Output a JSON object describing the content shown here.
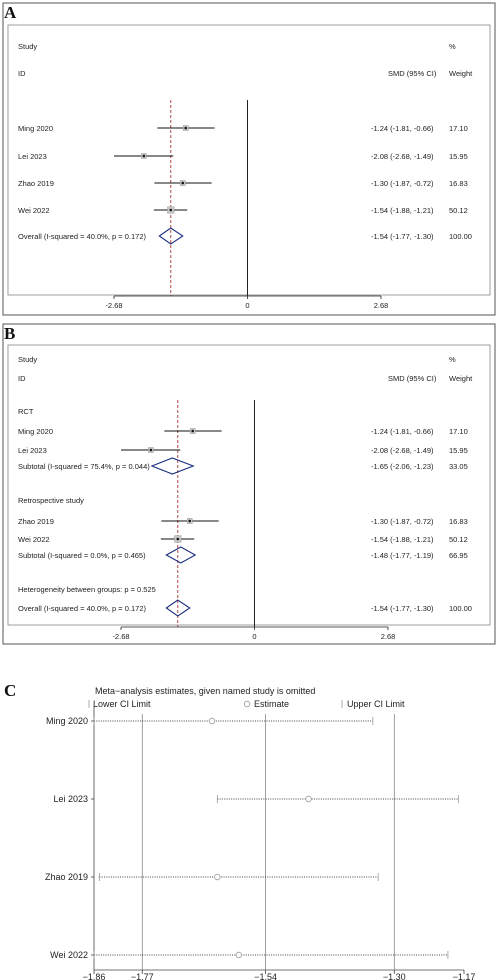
{
  "panels": {
    "a": {
      "label": "A"
    },
    "b": {
      "label": "B"
    },
    "c": {
      "label": "C"
    }
  },
  "chart_data": [
    {
      "type": "forest",
      "panel": "A",
      "header": {
        "study": "Study",
        "id": "ID",
        "effect": "SMD (95% CI)",
        "pct": "%",
        "weight": "Weight"
      },
      "xlim": [
        -2.68,
        2.68
      ],
      "ticks": [
        "-2.68",
        "0",
        "2.68"
      ],
      "reference_line": -1.54,
      "studies": [
        {
          "name": "Ming 2020",
          "est": -1.24,
          "lo": -1.81,
          "hi": -0.66,
          "ci_text": "-1.24 (-1.81, -0.66)",
          "weight": "17.10",
          "w": 17.1
        },
        {
          "name": "Lei 2023",
          "est": -2.08,
          "lo": -2.68,
          "hi": -1.49,
          "ci_text": "-2.08 (-2.68, -1.49)",
          "weight": "15.95",
          "w": 15.95
        },
        {
          "name": "Zhao 2019",
          "est": -1.3,
          "lo": -1.87,
          "hi": -0.72,
          "ci_text": "-1.30 (-1.87, -0.72)",
          "weight": "16.83",
          "w": 16.83
        },
        {
          "name": "Wei 2022",
          "est": -1.54,
          "lo": -1.88,
          "hi": -1.21,
          "ci_text": "-1.54 (-1.88, -1.21)",
          "weight": "50.12",
          "w": 50.12
        }
      ],
      "overall": {
        "name": "Overall  (I-squared = 40.0%, p = 0.172)",
        "est": -1.54,
        "lo": -1.77,
        "hi": -1.3,
        "ci_text": "-1.54 (-1.77, -1.30)",
        "weight": "100.00"
      }
    },
    {
      "type": "forest",
      "panel": "B",
      "header": {
        "study": "Study",
        "id": "ID",
        "effect": "SMD (95% CI)",
        "pct": "%",
        "weight": "Weight"
      },
      "xlim": [
        -2.68,
        2.68
      ],
      "ticks": [
        "-2.68",
        "0",
        "2.68"
      ],
      "reference_line": -1.54,
      "groups": [
        {
          "name": "RCT",
          "studies": [
            {
              "name": "Ming 2020",
              "est": -1.24,
              "lo": -1.81,
              "hi": -0.66,
              "ci_text": "-1.24 (-1.81, -0.66)",
              "weight": "17.10",
              "w": 17.1
            },
            {
              "name": "Lei 2023",
              "est": -2.08,
              "lo": -2.68,
              "hi": -1.49,
              "ci_text": "-2.08 (-2.68, -1.49)",
              "weight": "15.95",
              "w": 15.95
            }
          ],
          "subtotal": {
            "name": "Subtotal  (I-squared = 75.4%, p = 0.044)",
            "est": -1.65,
            "lo": -2.06,
            "hi": -1.23,
            "ci_text": "-1.65 (-2.06, -1.23)",
            "weight": "33.05"
          }
        },
        {
          "name": "Retrospective study",
          "studies": [
            {
              "name": "Zhao 2019",
              "est": -1.3,
              "lo": -1.87,
              "hi": -0.72,
              "ci_text": "-1.30 (-1.87, -0.72)",
              "weight": "16.83",
              "w": 16.83
            },
            {
              "name": "Wei 2022",
              "est": -1.54,
              "lo": -1.88,
              "hi": -1.21,
              "ci_text": "-1.54 (-1.88, -1.21)",
              "weight": "50.12",
              "w": 50.12
            }
          ],
          "subtotal": {
            "name": "Subtotal  (I-squared = 0.0%, p = 0.465)",
            "est": -1.48,
            "lo": -1.77,
            "hi": -1.19,
            "ci_text": "-1.48 (-1.77, -1.19)",
            "weight": "66.95"
          }
        }
      ],
      "heterogeneity": "Heterogeneity between groups: p = 0.525",
      "overall": {
        "name": "Overall  (I-squared = 40.0%, p = 0.172)",
        "est": -1.54,
        "lo": -1.77,
        "hi": -1.3,
        "ci_text": "-1.54 (-1.77, -1.30)",
        "weight": "100.00"
      }
    },
    {
      "type": "sensitivity",
      "panel": "C",
      "title": "Meta−analysis estimates, given named study is omitted",
      "legend": {
        "lower": "Lower CI Limit",
        "estimate": "Estimate",
        "upper": "Upper CI Limit"
      },
      "xlim": [
        -1.86,
        -1.17
      ],
      "ticks": [
        -1.86,
        -1.77,
        -1.54,
        -1.3,
        -1.17
      ],
      "tick_labels": [
        "−1.86",
        "−1.77",
        "−1.54",
        "−1.30",
        "−1.17"
      ],
      "rows": [
        {
          "name": "Ming 2020",
          "lo": -1.86,
          "est": -1.64,
          "hi": -1.34
        },
        {
          "name": "Lei 2023",
          "lo": -1.63,
          "est": -1.46,
          "hi": -1.18
        },
        {
          "name": "Zhao 2019",
          "lo": -1.85,
          "est": -1.63,
          "hi": -1.33
        },
        {
          "name": "Wei 2022",
          "lo": -1.86,
          "est": -1.59,
          "hi": -1.2
        }
      ]
    }
  ]
}
